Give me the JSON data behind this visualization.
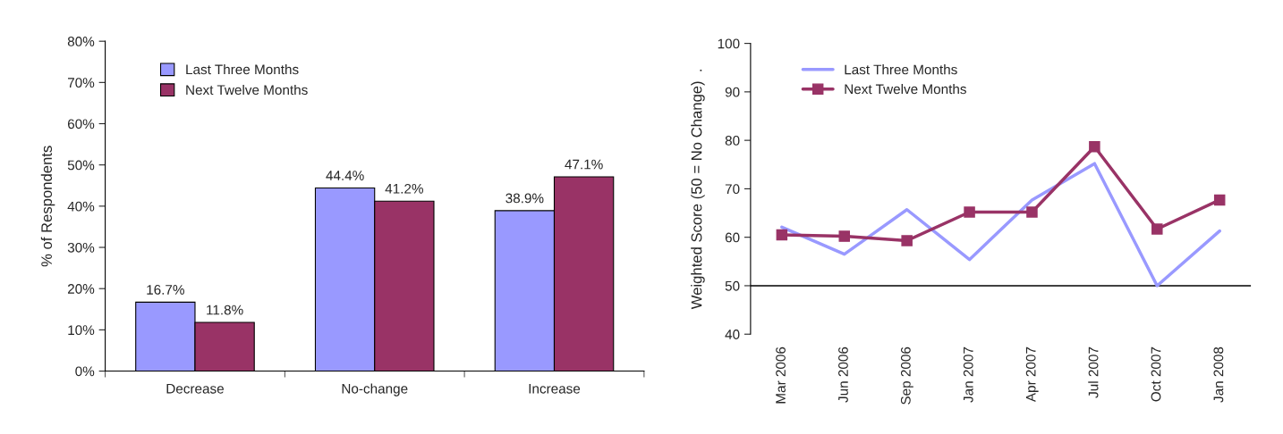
{
  "chart_data": [
    {
      "type": "bar",
      "categories": [
        "Decrease",
        "No-change",
        "Increase"
      ],
      "ylabel": "% of Respondents",
      "series": [
        {
          "name": "Last Three Months",
          "color": "#9999ff",
          "values": [
            16.7,
            44.4,
            38.9
          ]
        },
        {
          "name": "Next Twelve Months",
          "color": "#993366",
          "values": [
            11.8,
            41.2,
            47.1
          ]
        }
      ],
      "value_labels": [
        [
          "16.7%",
          "44.4%",
          "38.9%"
        ],
        [
          "11.8%",
          "41.2%",
          "47.1%"
        ]
      ],
      "ylim": [
        0,
        80
      ],
      "yticks": [
        {
          "value": 0,
          "label": "0%"
        },
        {
          "value": 10,
          "label": "10%"
        },
        {
          "value": 20,
          "label": "20%"
        },
        {
          "value": 30,
          "label": "30%"
        },
        {
          "value": 40,
          "label": "40%"
        },
        {
          "value": 50,
          "label": "50%"
        },
        {
          "value": 60,
          "label": "60%"
        },
        {
          "value": 70,
          "label": "70%"
        },
        {
          "value": 80,
          "label": "80%"
        }
      ],
      "legend": "top left",
      "grid": false
    },
    {
      "type": "line",
      "categories": [
        "Mar 2006",
        "Jun 2006",
        "Sep 2006",
        "Jan 2007",
        "Apr 2007",
        "Jul 2007",
        "Oct 2007",
        "Jan 2008"
      ],
      "ylabel": "Weighted Score (50 = No Change)  .",
      "series": [
        {
          "name": "Last Three Months",
          "color": "#9999ff",
          "marker": "none",
          "values": [
            62.1,
            56.5,
            65.7,
            55.4,
            67.7,
            75.2,
            50,
            61.3
          ]
        },
        {
          "name": "Next Twelve Months",
          "color": "#993366",
          "marker": "square",
          "values": [
            60.5,
            60.2,
            59.3,
            65.2,
            65.2,
            78.7,
            61.7,
            67.7
          ]
        }
      ],
      "ylim": [
        40,
        100
      ],
      "yticks": [
        40,
        50,
        60,
        70,
        80,
        90,
        100
      ],
      "ref_lines": [
        {
          "axis": "y",
          "value": 50,
          "color": "#000000"
        }
      ],
      "legend": "top left",
      "grid": false
    }
  ]
}
